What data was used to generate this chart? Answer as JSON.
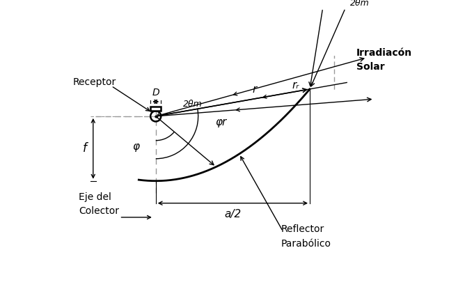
{
  "background_color": "#ffffff",
  "line_color": "#000000",
  "dash_color": "#999999",
  "receptor_label": "Receptor",
  "eje_label_1": "Eje del",
  "eje_label_2": "Colector",
  "irradiacion_label_1": "Irradiacón",
  "irradiacion_label_2": "Solar",
  "reflector_label_1": "Reflector",
  "reflector_label_2": "Parabólico",
  "phi_label": "φ",
  "phi_r_label": "φr",
  "r_label": "r",
  "rr_label": "rᵣ",
  "two_theta_label": "2θm",
  "D_label": "D",
  "f_label": "f",
  "a2_label": "a/2",
  "f_inside": "f",
  "xlim": [
    -2.2,
    6.0
  ],
  "ylim": [
    -4.2,
    1.5
  ]
}
